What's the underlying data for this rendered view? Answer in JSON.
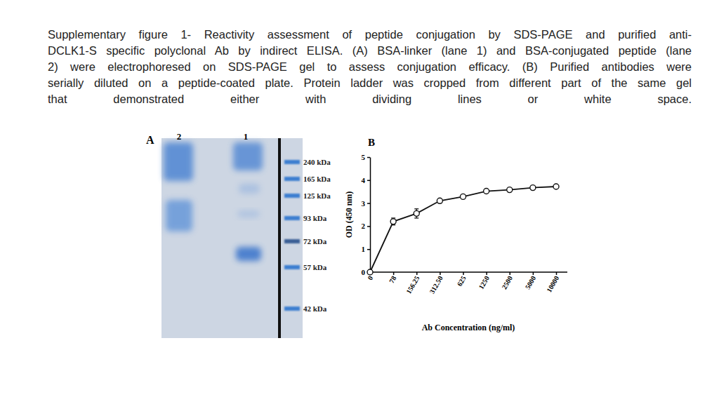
{
  "caption_lines": [
    "Supplementary figure 1- Reactivity assessment of peptide conjugation by SDS-PAGE and purified anti-",
    "DCLK1-S specific polyclonal Ab by indirect ELISA. (A) BSA-linker (lane 1) and BSA-conjugated peptide (lane",
    "2) were electrophoresed on SDS-PAGE gel to assess conjugation efficacy. (B) Purified antibodies were",
    "serially diluted on a peptide-coated plate. Protein ladder was cropped from different part of the same gel",
    "that demonstrated either with dividing lines or white space."
  ],
  "gel": {
    "panel_label": "A",
    "lanes": [
      "2",
      "1"
    ],
    "ladder": [
      "240 kDa",
      "165 kDa",
      "125 kDa",
      "93 kDa",
      "72 kDa",
      "57 kDa",
      "42 kDa"
    ]
  },
  "chart_data": {
    "type": "line",
    "panel_label": "B",
    "x_label": "Ab Concentration (ng/ml)",
    "y_label": "OD (450 nm)",
    "categories": [
      "0",
      "78",
      "156.25",
      "312.50",
      "625",
      "1250",
      "2500",
      "5000",
      "10000"
    ],
    "values": [
      0,
      2.2,
      2.55,
      3.1,
      3.28,
      3.52,
      3.58,
      3.67,
      3.72
    ],
    "errors": [
      0,
      0.15,
      0.2,
      0.08,
      0.04,
      0.03,
      0.03,
      0.03,
      0.07
    ],
    "color": "#111111",
    "marker": "circle",
    "ylim": [
      0,
      5
    ],
    "yticks": [
      0,
      1,
      2,
      3,
      4,
      5
    ],
    "grid": false
  }
}
